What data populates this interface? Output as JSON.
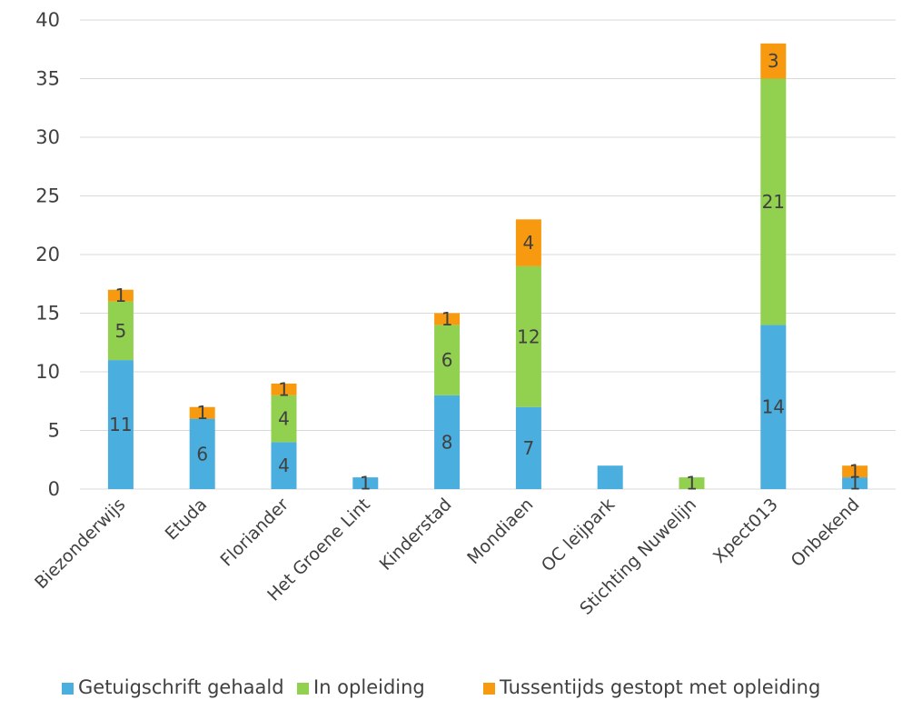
{
  "chart_data": {
    "type": "bar",
    "stacked": true,
    "categories": [
      "Biezonderwijs",
      "Etuda",
      "Floriander",
      "Het Groene Lint",
      "Kinderstad",
      "Mondiaen",
      "OC leijpark",
      "Stichting Nuwelijn",
      "Xpect013",
      "Onbekend"
    ],
    "series": [
      {
        "name": "Getuigschrift gehaald",
        "color": "#4aaedf",
        "values": [
          11,
          6,
          4,
          1,
          8,
          7,
          2,
          0,
          14,
          1
        ]
      },
      {
        "name": "In opleiding",
        "color": "#92d050",
        "values": [
          5,
          0,
          4,
          0,
          6,
          12,
          0,
          1,
          21,
          0
        ]
      },
      {
        "name": "Tussentijds gestopt met opleiding",
        "color": "#f79a0f",
        "values": [
          1,
          1,
          1,
          0,
          1,
          4,
          0,
          0,
          3,
          1
        ]
      }
    ],
    "ylim": [
      0,
      40
    ],
    "yticks": [
      0,
      5,
      10,
      15,
      20,
      25,
      30,
      35,
      40
    ],
    "grid": true,
    "legend": "bottom",
    "data_labels": [
      [
        "11",
        "6",
        "4",
        "1",
        "8",
        "7",
        "",
        "",
        "14",
        "1"
      ],
      [
        "5",
        "",
        "4",
        "",
        "6",
        "12",
        "",
        "1",
        "21",
        ""
      ],
      [
        "1",
        "1",
        "1",
        "",
        "1",
        "4",
        "",
        "",
        "3",
        "1"
      ]
    ]
  }
}
